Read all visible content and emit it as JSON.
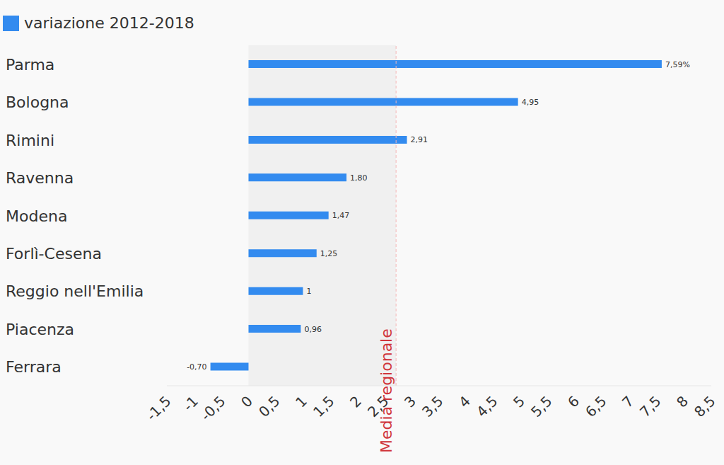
{
  "chart_data": {
    "type": "bar",
    "orientation": "horizontal",
    "categories": [
      "Parma",
      "Bologna",
      "Rimini",
      "Ravenna",
      "Modena",
      "Forlì-Cesena",
      "Reggio nell'Emilia",
      "Piacenza",
      "Ferrara"
    ],
    "series": [
      {
        "name": "variazione 2012-2018",
        "color": "#338bef",
        "values": [
          7.59,
          4.95,
          2.91,
          1.8,
          1.47,
          1.25,
          1,
          0.96,
          -0.7
        ],
        "value_labels": [
          "7,59%",
          "4,95",
          "2,91",
          "1,80",
          "1,47",
          "1,25",
          "1",
          "0,96",
          "-0,70"
        ]
      }
    ],
    "xlim": [
      -1.5,
      8.5
    ],
    "xticks": [
      {
        "value": -1.5,
        "label": "-1,5"
      },
      -1,
      {
        "value": -0.5,
        "label": "-0,5"
      },
      0,
      {
        "value": 0.5,
        "label": "0,5"
      },
      1,
      {
        "value": 1.5,
        "label": "1,5"
      },
      2,
      {
        "value": 2.5,
        "label": "2,5"
      },
      3,
      {
        "value": 3.5,
        "label": "3,5"
      },
      4,
      {
        "value": 4.5,
        "label": "4,5"
      },
      5,
      {
        "value": 5.5,
        "label": "5,5"
      },
      6,
      {
        "value": 6.5,
        "label": "6,5"
      },
      7,
      {
        "value": 7.5,
        "label": "7,5"
      },
      8,
      {
        "value": 8.5,
        "label": "8,5"
      }
    ],
    "annotations": [
      {
        "value": 2.71,
        "label": "Media regionale"
      }
    ],
    "data_labels": true,
    "grid": false,
    "legend": "top-left"
  }
}
